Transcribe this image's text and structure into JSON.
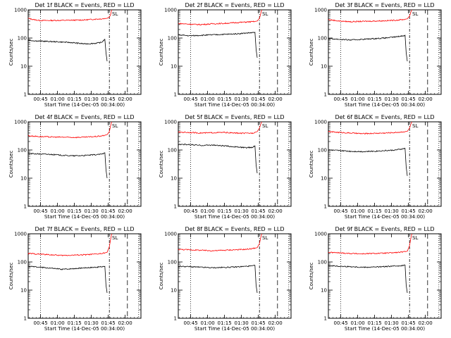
{
  "chart_data": [
    {
      "type": "line",
      "title": "Det 1f BLACK = Events, RED = LLD",
      "xlabel": "Start Time (14-Dec-05 00:34:00)",
      "ylabel": "Counts/sec",
      "yscale": "log",
      "ylim": [
        1,
        1000
      ],
      "yticks": [
        "1",
        "10",
        "100",
        "1000"
      ],
      "xticks": [
        "00:45",
        "01:00",
        "01:15",
        "01:30",
        "01:45",
        "02:00"
      ],
      "xtick_values": [
        11,
        26,
        41,
        56,
        71,
        86
      ],
      "xlim": [
        0,
        100
      ],
      "series": [
        {
          "color": "#ff0000",
          "x": [
            0,
            5,
            10,
            20,
            30,
            40,
            50,
            60,
            65,
            70,
            72,
            73,
            74
          ],
          "y": [
            500,
            450,
            420,
            420,
            425,
            430,
            440,
            470,
            480,
            500,
            560,
            650,
            1000
          ]
        },
        {
          "color": "#000000",
          "x": [
            0,
            5,
            10,
            20,
            30,
            40,
            50,
            60,
            65,
            68,
            69,
            70
          ],
          "y": [
            85,
            80,
            78,
            75,
            72,
            68,
            62,
            65,
            70,
            90,
            30,
            15
          ]
        }
      ],
      "vlines": [
        {
          "x": 11,
          "style": "dotted"
        },
        {
          "x": 72,
          "style": "dashdot"
        },
        {
          "x": 88,
          "style": "longdash"
        },
        {
          "x": 98,
          "style": "dotted"
        }
      ],
      "annotations": [
        {
          "text": "SL",
          "x": 77
        }
      ]
    },
    {
      "type": "line",
      "title": "Det 2f BLACK = Events, RED = LLD",
      "xlabel": "Start Time (14-Dec-05 00:34:00)",
      "ylabel": "Counts/sec",
      "yscale": "log",
      "ylim": [
        1,
        1000
      ],
      "yticks": [
        "1",
        "10",
        "100",
        "1000"
      ],
      "xticks": [
        "00:45",
        "01:00",
        "01:15",
        "01:30",
        "01:45",
        "02:00"
      ],
      "xtick_values": [
        11,
        26,
        41,
        56,
        71,
        86
      ],
      "xlim": [
        0,
        100
      ],
      "series": [
        {
          "color": "#ff0000",
          "x": [
            0,
            10,
            20,
            30,
            40,
            50,
            60,
            66,
            70,
            72,
            73,
            74
          ],
          "y": [
            330,
            310,
            300,
            320,
            330,
            350,
            370,
            380,
            400,
            500,
            700,
            1000
          ]
        },
        {
          "color": "#000000",
          "x": [
            0,
            10,
            20,
            30,
            40,
            50,
            60,
            66,
            68,
            69,
            70
          ],
          "y": [
            130,
            120,
            125,
            130,
            135,
            140,
            150,
            155,
            160,
            40,
            20
          ]
        }
      ],
      "vlines": [
        {
          "x": 11,
          "style": "dotted"
        },
        {
          "x": 72,
          "style": "dashdot"
        },
        {
          "x": 88,
          "style": "longdash"
        },
        {
          "x": 98,
          "style": "dotted"
        }
      ],
      "annotations": [
        {
          "text": "SL",
          "x": 77
        }
      ]
    },
    {
      "type": "line",
      "title": "Det 3f BLACK = Events, RED = LLD",
      "xlabel": "Start Time (14-Dec-05 00:34:00)",
      "ylabel": "Counts/sec",
      "yscale": "log",
      "ylim": [
        1,
        1000
      ],
      "yticks": [
        "1",
        "10",
        "100",
        "1000"
      ],
      "xticks": [
        "00:45",
        "01:00",
        "01:15",
        "01:30",
        "01:45",
        "02:00"
      ],
      "xtick_values": [
        11,
        26,
        41,
        56,
        71,
        86
      ],
      "xlim": [
        0,
        100
      ],
      "series": [
        {
          "color": "#ff0000",
          "x": [
            0,
            10,
            20,
            30,
            40,
            50,
            60,
            66,
            70,
            72,
            73,
            74
          ],
          "y": [
            450,
            400,
            380,
            390,
            400,
            410,
            430,
            450,
            480,
            600,
            800,
            1000
          ]
        },
        {
          "color": "#000000",
          "x": [
            0,
            10,
            20,
            30,
            40,
            50,
            60,
            66,
            68,
            69,
            70
          ],
          "y": [
            95,
            90,
            85,
            90,
            95,
            100,
            110,
            120,
            125,
            30,
            15
          ]
        }
      ],
      "vlines": [
        {
          "x": 11,
          "style": "dotted"
        },
        {
          "x": 72,
          "style": "dashdot"
        },
        {
          "x": 88,
          "style": "longdash"
        },
        {
          "x": 98,
          "style": "dotted"
        }
      ],
      "annotations": [
        {
          "text": "SL",
          "x": 77
        }
      ]
    },
    {
      "type": "line",
      "title": "Det 4f BLACK = Events, RED = LLD",
      "xlabel": "Start Time (14-Dec-05 00:34:00)",
      "ylabel": "Counts/sec",
      "yscale": "log",
      "ylim": [
        1,
        1000
      ],
      "yticks": [
        "1",
        "10",
        "100",
        "1000"
      ],
      "xticks": [
        "00:45",
        "01:00",
        "01:15",
        "01:30",
        "01:45",
        "02:00"
      ],
      "xtick_values": [
        11,
        26,
        41,
        56,
        71,
        86
      ],
      "xlim": [
        0,
        100
      ],
      "series": [
        {
          "color": "#ff0000",
          "x": [
            0,
            10,
            20,
            30,
            40,
            50,
            60,
            66,
            70,
            72,
            73,
            74
          ],
          "y": [
            320,
            300,
            290,
            285,
            280,
            285,
            300,
            320,
            350,
            450,
            700,
            1000
          ]
        },
        {
          "color": "#000000",
          "x": [
            0,
            10,
            20,
            30,
            40,
            50,
            60,
            66,
            68,
            69,
            70
          ],
          "y": [
            75,
            72,
            70,
            65,
            62,
            64,
            68,
            72,
            80,
            20,
            10
          ]
        }
      ],
      "vlines": [
        {
          "x": 11,
          "style": "dotted"
        },
        {
          "x": 72,
          "style": "dashdot"
        },
        {
          "x": 88,
          "style": "longdash"
        },
        {
          "x": 98,
          "style": "dotted"
        }
      ],
      "annotations": [
        {
          "text": "SL",
          "x": 77
        }
      ]
    },
    {
      "type": "line",
      "title": "Det 5f BLACK = Events, RED = LLD",
      "xlabel": "Start Time (14-Dec-05 00:34:00)",
      "ylabel": "Counts/sec",
      "yscale": "log",
      "ylim": [
        1,
        1000
      ],
      "yticks": [
        "1",
        "10",
        "100",
        "1000"
      ],
      "xticks": [
        "00:45",
        "01:00",
        "01:15",
        "01:30",
        "01:45",
        "02:00"
      ],
      "xtick_values": [
        11,
        26,
        41,
        56,
        71,
        86
      ],
      "xlim": [
        0,
        100
      ],
      "series": [
        {
          "color": "#ff0000",
          "x": [
            0,
            10,
            20,
            30,
            40,
            50,
            60,
            66,
            70,
            72,
            73,
            74
          ],
          "y": [
            430,
            420,
            400,
            410,
            420,
            400,
            390,
            400,
            450,
            600,
            800,
            1000
          ]
        },
        {
          "color": "#000000",
          "x": [
            0,
            10,
            20,
            30,
            40,
            50,
            60,
            66,
            68,
            69,
            70
          ],
          "y": [
            160,
            155,
            145,
            150,
            140,
            130,
            120,
            125,
            140,
            30,
            15
          ]
        }
      ],
      "vlines": [
        {
          "x": 11,
          "style": "dotted"
        },
        {
          "x": 72,
          "style": "dashdot"
        },
        {
          "x": 88,
          "style": "longdash"
        },
        {
          "x": 98,
          "style": "dotted"
        }
      ],
      "annotations": [
        {
          "text": "SL",
          "x": 77
        }
      ]
    },
    {
      "type": "line",
      "title": "Det 6f BLACK = Events, RED = LLD",
      "xlabel": "Start Time (14-Dec-05 00:34:00)",
      "ylabel": "Counts/sec",
      "yscale": "log",
      "ylim": [
        1,
        1000
      ],
      "yticks": [
        "1",
        "10",
        "100",
        "1000"
      ],
      "xticks": [
        "00:45",
        "01:00",
        "01:15",
        "01:30",
        "01:45",
        "02:00"
      ],
      "xtick_values": [
        11,
        26,
        41,
        56,
        71,
        86
      ],
      "xlim": [
        0,
        100
      ],
      "series": [
        {
          "color": "#ff0000",
          "x": [
            0,
            10,
            20,
            30,
            40,
            50,
            60,
            66,
            70,
            72,
            73,
            74
          ],
          "y": [
            450,
            420,
            400,
            380,
            390,
            400,
            420,
            440,
            460,
            600,
            800,
            1000
          ]
        },
        {
          "color": "#000000",
          "x": [
            0,
            10,
            20,
            30,
            40,
            50,
            60,
            66,
            68,
            69,
            70
          ],
          "y": [
            100,
            95,
            90,
            88,
            90,
            95,
            100,
            110,
            115,
            25,
            12
          ]
        }
      ],
      "vlines": [
        {
          "x": 11,
          "style": "dotted"
        },
        {
          "x": 72,
          "style": "dashdot"
        },
        {
          "x": 88,
          "style": "longdash"
        },
        {
          "x": 98,
          "style": "dotted"
        }
      ],
      "annotations": [
        {
          "text": "SL",
          "x": 77
        }
      ]
    },
    {
      "type": "line",
      "title": "Det 7f BLACK = Events, RED = LLD",
      "xlabel": "Start Time (14-Dec-05 00:34:00)",
      "ylabel": "Counts/sec",
      "yscale": "log",
      "ylim": [
        1,
        1000
      ],
      "yticks": [
        "1",
        "10",
        "100",
        "1000"
      ],
      "xticks": [
        "00:45",
        "01:00",
        "01:15",
        "01:30",
        "01:45",
        "02:00"
      ],
      "xtick_values": [
        11,
        26,
        41,
        56,
        71,
        86
      ],
      "xlim": [
        0,
        100
      ],
      "series": [
        {
          "color": "#ff0000",
          "x": [
            0,
            10,
            20,
            30,
            40,
            50,
            60,
            66,
            70,
            72,
            73,
            74
          ],
          "y": [
            200,
            190,
            180,
            170,
            175,
            180,
            190,
            200,
            220,
            350,
            600,
            1000
          ]
        },
        {
          "color": "#000000",
          "x": [
            0,
            10,
            20,
            30,
            40,
            50,
            60,
            66,
            68,
            69,
            70
          ],
          "y": [
            70,
            65,
            60,
            55,
            58,
            62,
            65,
            68,
            70,
            15,
            8
          ]
        }
      ],
      "vlines": [
        {
          "x": 11,
          "style": "dotted"
        },
        {
          "x": 72,
          "style": "dashdot"
        },
        {
          "x": 88,
          "style": "longdash"
        },
        {
          "x": 98,
          "style": "dotted"
        }
      ],
      "annotations": [
        {
          "text": "SL",
          "x": 77
        }
      ]
    },
    {
      "type": "line",
      "title": "Det 8f BLACK = Events, RED = LLD",
      "xlabel": "Start Time (14-Dec-05 00:34:00)",
      "ylabel": "Counts/sec",
      "yscale": "log",
      "ylim": [
        1,
        1000
      ],
      "yticks": [
        "1",
        "10",
        "100",
        "1000"
      ],
      "xticks": [
        "00:45",
        "01:00",
        "01:15",
        "01:30",
        "01:45",
        "02:00"
      ],
      "xtick_values": [
        11,
        26,
        41,
        56,
        71,
        86
      ],
      "xlim": [
        0,
        100
      ],
      "series": [
        {
          "color": "#ff0000",
          "x": [
            0,
            10,
            20,
            30,
            40,
            50,
            60,
            66,
            70,
            72,
            73,
            74
          ],
          "y": [
            280,
            270,
            260,
            250,
            260,
            270,
            280,
            300,
            320,
            450,
            700,
            1000
          ]
        },
        {
          "color": "#000000",
          "x": [
            0,
            10,
            20,
            30,
            40,
            50,
            60,
            66,
            68,
            69,
            70
          ],
          "y": [
            70,
            68,
            65,
            62,
            64,
            66,
            70,
            72,
            75,
            15,
            8
          ]
        }
      ],
      "vlines": [
        {
          "x": 11,
          "style": "dotted"
        },
        {
          "x": 72,
          "style": "dashdot"
        },
        {
          "x": 88,
          "style": "longdash"
        },
        {
          "x": 98,
          "style": "dotted"
        }
      ],
      "annotations": [
        {
          "text": "SL",
          "x": 77
        }
      ]
    },
    {
      "type": "line",
      "title": "Det 9f BLACK = Events, RED = LLD",
      "xlabel": "Start Time (14-Dec-05 00:34:00)",
      "ylabel": "Counts/sec",
      "yscale": "log",
      "ylim": [
        1,
        1000
      ],
      "yticks": [
        "1",
        "10",
        "100",
        "1000"
      ],
      "xticks": [
        "00:45",
        "01:00",
        "01:15",
        "01:30",
        "01:45",
        "02:00"
      ],
      "xtick_values": [
        11,
        26,
        41,
        56,
        71,
        86
      ],
      "xlim": [
        0,
        100
      ],
      "series": [
        {
          "color": "#ff0000",
          "x": [
            0,
            10,
            20,
            30,
            40,
            50,
            60,
            66,
            70,
            72,
            73,
            74
          ],
          "y": [
            220,
            210,
            200,
            195,
            200,
            205,
            215,
            225,
            240,
            380,
            650,
            1000
          ]
        },
        {
          "color": "#000000",
          "x": [
            0,
            10,
            20,
            30,
            40,
            50,
            60,
            66,
            68,
            69,
            70
          ],
          "y": [
            75,
            70,
            68,
            65,
            66,
            68,
            72,
            75,
            78,
            15,
            8
          ]
        }
      ],
      "vlines": [
        {
          "x": 11,
          "style": "dotted"
        },
        {
          "x": 72,
          "style": "dashdot"
        },
        {
          "x": 88,
          "style": "longdash"
        },
        {
          "x": 98,
          "style": "dotted"
        }
      ],
      "annotations": [
        {
          "text": "SL",
          "x": 77
        }
      ]
    }
  ]
}
